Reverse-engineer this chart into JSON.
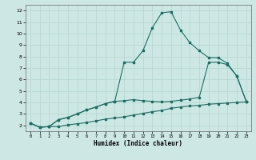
{
  "xlabel": "Humidex (Indice chaleur)",
  "ylabel": "",
  "background_color": "#cde8e4",
  "grid_color": "#b8d8d4",
  "line_color": "#1a6e62",
  "xlim_min": -0.5,
  "xlim_max": 23.5,
  "ylim_min": 1.5,
  "ylim_max": 12.5,
  "xticks": [
    0,
    1,
    2,
    3,
    4,
    5,
    6,
    7,
    8,
    9,
    10,
    11,
    12,
    13,
    14,
    15,
    16,
    17,
    18,
    19,
    20,
    21,
    22,
    23
  ],
  "yticks": [
    2,
    3,
    4,
    5,
    6,
    7,
    8,
    9,
    10,
    11,
    12
  ],
  "line1_x": [
    0,
    1,
    2,
    3,
    4,
    5,
    6,
    7,
    8,
    9,
    10,
    11,
    12,
    13,
    14,
    15,
    16,
    17,
    18,
    19,
    20,
    21,
    22,
    23
  ],
  "line1_y": [
    2.2,
    1.85,
    1.9,
    1.9,
    2.05,
    2.15,
    2.25,
    2.4,
    2.55,
    2.65,
    2.75,
    2.9,
    3.05,
    3.2,
    3.3,
    3.5,
    3.6,
    3.7,
    3.75,
    3.85,
    3.9,
    3.95,
    4.0,
    4.05
  ],
  "line2_x": [
    0,
    1,
    2,
    3,
    4,
    5,
    6,
    7,
    8,
    9,
    10,
    11,
    12,
    13,
    14,
    15,
    16,
    17,
    18,
    19,
    20,
    21,
    22,
    23
  ],
  "line2_y": [
    2.2,
    1.85,
    1.9,
    2.5,
    2.7,
    3.0,
    3.35,
    3.6,
    3.9,
    4.1,
    4.15,
    4.25,
    4.15,
    4.1,
    4.05,
    4.1,
    4.2,
    4.3,
    4.45,
    7.5,
    7.5,
    7.3,
    6.3,
    4.1
  ],
  "line3_x": [
    0,
    1,
    2,
    3,
    4,
    5,
    6,
    7,
    8,
    9,
    10,
    11,
    12,
    13,
    14,
    15,
    16,
    17,
    18,
    19,
    20,
    21,
    22,
    23
  ],
  "line3_y": [
    2.2,
    1.85,
    1.9,
    2.5,
    2.7,
    3.0,
    3.35,
    3.6,
    3.9,
    4.1,
    7.5,
    7.5,
    8.5,
    10.5,
    11.8,
    11.9,
    10.3,
    9.2,
    8.5,
    7.9,
    7.9,
    7.4,
    6.3,
    4.1
  ]
}
